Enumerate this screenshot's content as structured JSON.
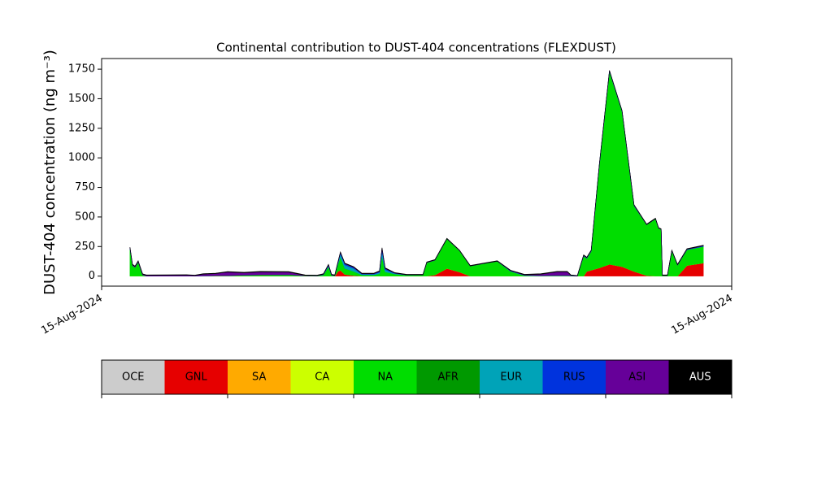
{
  "chart_data": {
    "type": "stacked_area",
    "title": "Continental contribution to DUST-404 concentrations (FLEXDUST)",
    "y_label": "DUST-404 concentration (ng m⁻³)",
    "xlim": [
      0,
      1
    ],
    "xticks": [
      {
        "value": 0,
        "label": "15-Aug-2024"
      },
      {
        "value": 1,
        "label": "15-Aug-2024"
      }
    ],
    "ylim": [
      -85,
      1840
    ],
    "yticks": [
      0,
      250,
      500,
      750,
      1000,
      1250,
      1500,
      1750
    ],
    "x": [
      0.045,
      0.049,
      0.053,
      0.058,
      0.065,
      0.071,
      0.135,
      0.148,
      0.161,
      0.181,
      0.2,
      0.226,
      0.252,
      0.297,
      0.323,
      0.342,
      0.352,
      0.36,
      0.365,
      0.37,
      0.375,
      0.379,
      0.386,
      0.4,
      0.413,
      0.432,
      0.441,
      0.445,
      0.45,
      0.465,
      0.484,
      0.51,
      0.516,
      0.529,
      0.548,
      0.568,
      0.585,
      0.606,
      0.628,
      0.649,
      0.671,
      0.697,
      0.723,
      0.739,
      0.745,
      0.755,
      0.765,
      0.77,
      0.777,
      0.79,
      0.806,
      0.826,
      0.845,
      0.865,
      0.879,
      0.884,
      0.888,
      0.89,
      0.898,
      0.905,
      0.914,
      0.929,
      0.955
    ],
    "series": [
      {
        "name": "OCE",
        "color": "#cccccc",
        "values": [
          0,
          0,
          0,
          0,
          0,
          0,
          0,
          0,
          0,
          0,
          0,
          0,
          0,
          0,
          0,
          0,
          0,
          0,
          0,
          0,
          0,
          0,
          0,
          0,
          0,
          0,
          0,
          0,
          0,
          0,
          0,
          0,
          0,
          0,
          0,
          0,
          0,
          0,
          0,
          0,
          0,
          0,
          0,
          0,
          0,
          0,
          0,
          0,
          0,
          0,
          0,
          0,
          0,
          0,
          0,
          0,
          0,
          0,
          0,
          0,
          0,
          0,
          0
        ]
      },
      {
        "name": "GNL",
        "color": "#e60000",
        "values": [
          0,
          0,
          0,
          0,
          0,
          0,
          0,
          0,
          0,
          0,
          0,
          0,
          0,
          0,
          0,
          0,
          0,
          0,
          0,
          0,
          40,
          50,
          15,
          5,
          0,
          0,
          0,
          0,
          0,
          0,
          0,
          0,
          0,
          10,
          65,
          35,
          0,
          0,
          0,
          0,
          0,
          0,
          0,
          0,
          0,
          0,
          0,
          40,
          50,
          70,
          100,
          80,
          40,
          5,
          0,
          0,
          0,
          0,
          0,
          0,
          0,
          90,
          110
        ]
      },
      {
        "name": "SA",
        "color": "#ffaa00",
        "values": [
          0,
          0,
          0,
          0,
          0,
          0,
          0,
          0,
          0,
          0,
          0,
          0,
          0,
          0,
          0,
          0,
          0,
          0,
          0,
          0,
          0,
          0,
          0,
          0,
          0,
          0,
          0,
          0,
          0,
          0,
          0,
          0,
          0,
          0,
          0,
          0,
          0,
          0,
          0,
          0,
          0,
          0,
          0,
          0,
          0,
          0,
          0,
          0,
          0,
          0,
          0,
          0,
          0,
          0,
          0,
          0,
          0,
          0,
          0,
          0,
          0,
          0,
          0
        ]
      },
      {
        "name": "CA",
        "color": "#ccff00",
        "values": [
          0,
          0,
          0,
          0,
          0,
          0,
          0,
          0,
          0,
          0,
          0,
          0,
          0,
          0,
          0,
          0,
          0,
          0,
          0,
          0,
          0,
          0,
          0,
          0,
          0,
          0,
          0,
          0,
          0,
          0,
          0,
          0,
          0,
          0,
          0,
          0,
          0,
          0,
          0,
          0,
          0,
          0,
          0,
          0,
          0,
          0,
          0,
          0,
          0,
          0,
          0,
          0,
          0,
          0,
          0,
          0,
          0,
          0,
          0,
          0,
          0,
          0,
          0
        ]
      },
      {
        "name": "NA",
        "color": "#00dd00",
        "values": [
          236,
          90,
          75,
          120,
          10,
          0,
          0,
          0,
          2,
          3,
          4,
          8,
          10,
          12,
          3,
          2,
          10,
          80,
          6,
          3,
          60,
          110,
          50,
          35,
          10,
          10,
          20,
          170,
          35,
          18,
          8,
          9,
          113,
          124,
          250,
          180,
          85,
          105,
          125,
          40,
          5,
          2,
          4,
          4,
          2,
          0,
          170,
          110,
          160,
          870,
          1630,
          1310,
          553,
          430,
          485,
          405,
          395,
          5,
          5,
          214,
          94,
          132,
          140
        ]
      },
      {
        "name": "AFR",
        "color": "#009900",
        "values": [
          0,
          0,
          0,
          0,
          0,
          0,
          0,
          0,
          0,
          0,
          0,
          0,
          0,
          0,
          0,
          0,
          0,
          0,
          0,
          0,
          0,
          0,
          0,
          0,
          0,
          0,
          0,
          0,
          0,
          0,
          0,
          0,
          0,
          0,
          0,
          0,
          0,
          0,
          0,
          0,
          0,
          0,
          0,
          0,
          0,
          0,
          0,
          0,
          0,
          0,
          0,
          0,
          0,
          0,
          0,
          0,
          0,
          0,
          0,
          0,
          0,
          0,
          0
        ]
      },
      {
        "name": "EUR",
        "color": "#00a3b8",
        "values": [
          0,
          0,
          0,
          0,
          0,
          0,
          0,
          0,
          0,
          0,
          0,
          0,
          0,
          0,
          0,
          0,
          2,
          8,
          2,
          1,
          10,
          30,
          30,
          25,
          6,
          6,
          12,
          40,
          20,
          5,
          2,
          1,
          2,
          1,
          1,
          1,
          1,
          1,
          1,
          3,
          2,
          1,
          1,
          1,
          1,
          0,
          2,
          2,
          2,
          3,
          3,
          3,
          3,
          0,
          0,
          0,
          0,
          0,
          0,
          0,
          0,
          2,
          2
        ]
      },
      {
        "name": "RUS",
        "color": "#0033dd",
        "values": [
          0,
          0,
          0,
          0,
          0,
          0,
          0,
          0,
          0,
          0,
          0,
          0,
          0,
          0,
          0,
          0,
          2,
          4,
          1,
          1,
          3,
          8,
          8,
          8,
          3,
          3,
          6,
          20,
          8,
          2,
          0,
          0,
          0,
          0,
          0,
          0,
          0,
          0,
          0,
          2,
          1,
          1,
          1,
          1,
          1,
          0,
          2,
          2,
          2,
          3,
          3,
          3,
          3,
          0,
          0,
          0,
          0,
          0,
          0,
          0,
          0,
          2,
          3
        ]
      },
      {
        "name": "ASI",
        "color": "#660099",
        "values": [
          5,
          6,
          6,
          6,
          6,
          6,
          8,
          4,
          14,
          18,
          30,
          20,
          26,
          22,
          3,
          2,
          2,
          4,
          2,
          1,
          3,
          3,
          3,
          3,
          2,
          2,
          3,
          6,
          3,
          1,
          1,
          1,
          1,
          1,
          0,
          0,
          0,
          0,
          0,
          1,
          3,
          12,
          30,
          30,
          2,
          1,
          2,
          2,
          2,
          0,
          0,
          0,
          1,
          1,
          1,
          1,
          1,
          1,
          1,
          2,
          2,
          2,
          2
        ]
      },
      {
        "name": "AUS",
        "color": "#000000",
        "values": [
          4,
          4,
          4,
          4,
          4,
          4,
          4,
          4,
          4,
          4,
          4,
          4,
          4,
          4,
          4,
          4,
          4,
          4,
          4,
          4,
          4,
          4,
          4,
          4,
          4,
          4,
          4,
          4,
          4,
          4,
          4,
          4,
          4,
          4,
          4,
          4,
          4,
          4,
          4,
          4,
          4,
          4,
          4,
          4,
          4,
          4,
          4,
          4,
          4,
          4,
          4,
          4,
          4,
          4,
          4,
          4,
          4,
          4,
          4,
          4,
          4,
          4,
          4
        ]
      }
    ]
  }
}
